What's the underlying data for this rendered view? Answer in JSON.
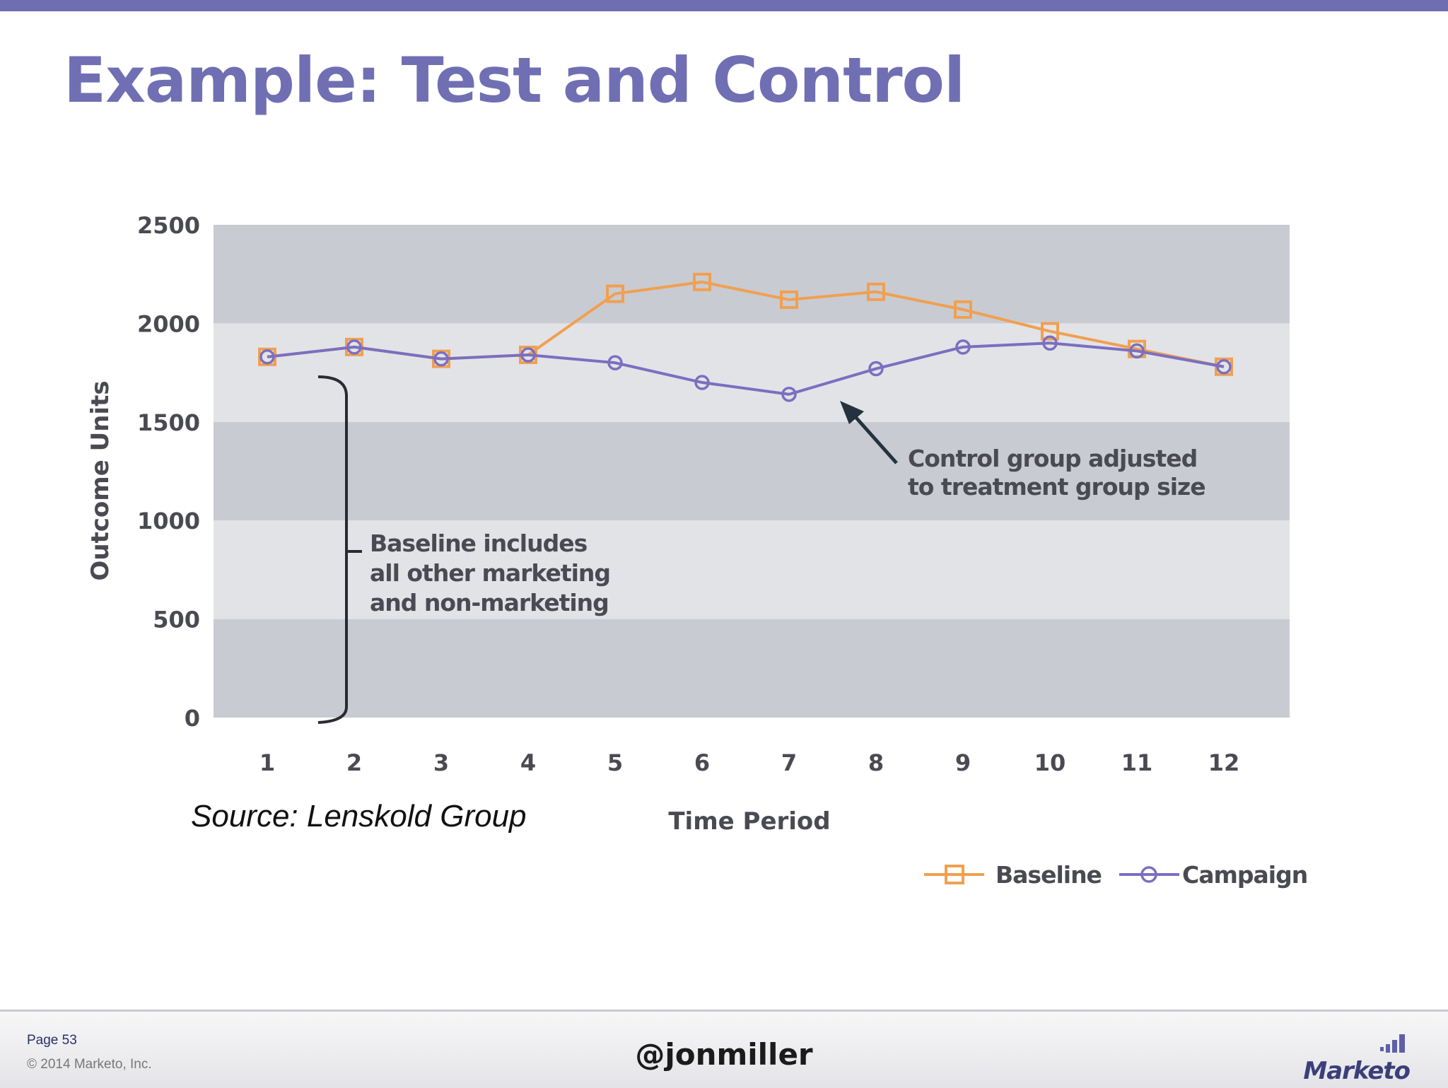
{
  "slide": {
    "title": "Example: Test and Control",
    "source": "Source: Lenskold Group"
  },
  "chart_data": {
    "type": "line",
    "title": "",
    "xlabel": "Time Period",
    "ylabel": "Outcome Units",
    "x": [
      1,
      2,
      3,
      4,
      5,
      6,
      7,
      8,
      9,
      10,
      11,
      12
    ],
    "ylim": [
      0,
      2500
    ],
    "yticks": [
      0,
      500,
      1000,
      1500,
      2000,
      2500
    ],
    "series": [
      {
        "name": "Baseline",
        "color": "#f0a050",
        "marker": "square",
        "values": [
          1830,
          1880,
          1820,
          1840,
          2150,
          2210,
          2120,
          2160,
          2070,
          1960,
          1870,
          1780
        ]
      },
      {
        "name": "Campaign",
        "color": "#7b6fc0",
        "marker": "circle",
        "values": [
          1830,
          1880,
          1820,
          1840,
          1800,
          1700,
          1640,
          1770,
          1880,
          1900,
          1860,
          1780
        ]
      }
    ],
    "annotations": [
      {
        "lines": [
          "Control group adjusted",
          "to treatment group size"
        ]
      },
      {
        "lines": [
          "Baseline includes",
          "all other marketing",
          "and non-marketing"
        ]
      }
    ],
    "legend_position": "bottom-right",
    "band_colors": [
      "#c9cbd2",
      "#e2e3e7"
    ]
  },
  "footer": {
    "page": "Page 53",
    "copyright": "© 2014 Marketo, Inc.",
    "handle": "@jonmiller",
    "logo": "Marketo"
  }
}
